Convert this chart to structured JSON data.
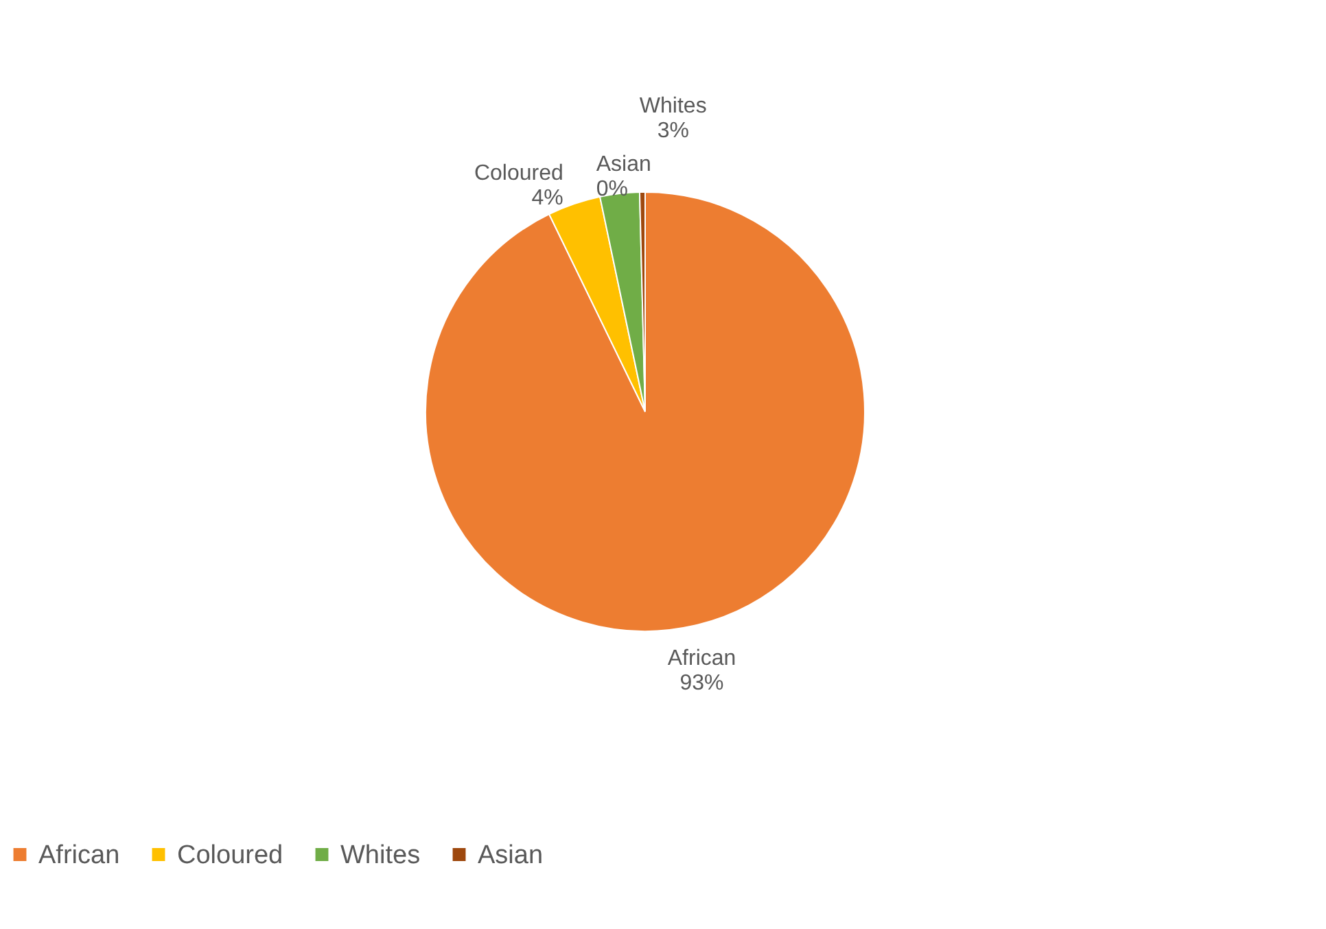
{
  "chart_data": {
    "type": "pie",
    "categories": [
      "African",
      "Coloured",
      "Whites",
      "Asian"
    ],
    "values": [
      92.8,
      3.9,
      2.9,
      0.4
    ],
    "value_labels": [
      "93%",
      "4%",
      "3%",
      "0%"
    ],
    "colors": [
      "#ed7d31",
      "#ffc000",
      "#70ad47",
      "#9e480e"
    ],
    "legend": "bottom"
  }
}
